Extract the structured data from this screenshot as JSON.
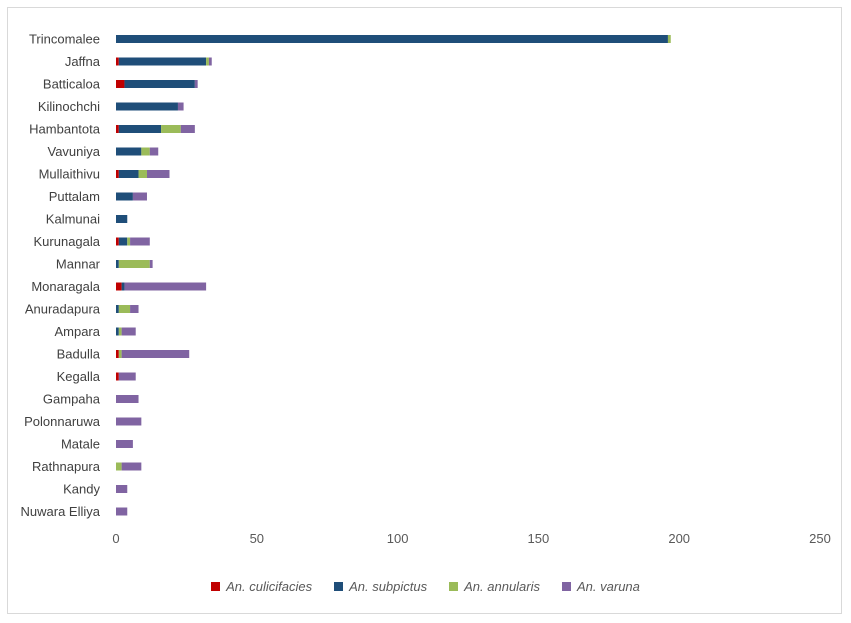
{
  "chart_data": {
    "type": "bar",
    "orientation": "horizontal",
    "stacked": true,
    "categories": [
      "Trincomalee",
      "Jaffna",
      "Batticaloa",
      "Kilinochchi",
      "Hambantota",
      "Vavuniya",
      "Mullaithivu",
      "Puttalam",
      "Kalmunai",
      "Kurunagala",
      "Mannar",
      "Monaragala",
      "Anuradapura",
      "Ampara",
      "Badulla",
      "Kegalla",
      "Gampaha",
      "Polonnaruwa",
      "Matale",
      "Rathnapura",
      "Kandy",
      "Nuwara Elliya"
    ],
    "series": [
      {
        "name": "An. culicifacies",
        "color": "#c00000",
        "values": [
          0,
          1,
          3,
          0,
          1,
          0,
          1,
          0,
          0,
          1,
          0,
          2,
          0,
          0,
          1,
          1,
          0,
          0,
          0,
          0,
          0,
          0
        ]
      },
      {
        "name": "An. subpictus",
        "color": "#1f4e79",
        "values": [
          196,
          31,
          25,
          22,
          15,
          9,
          7,
          6,
          4,
          3,
          1,
          1,
          1,
          1,
          0,
          0,
          0,
          0,
          0,
          0,
          0,
          0
        ]
      },
      {
        "name": "An. annularis",
        "color": "#9bbb59",
        "values": [
          1,
          1,
          0,
          0,
          7,
          3,
          3,
          0,
          0,
          1,
          11,
          0,
          4,
          1,
          1,
          0,
          0,
          0,
          0,
          2,
          0,
          0
        ]
      },
      {
        "name": "An. varuna",
        "color": "#8064a2",
        "values": [
          0,
          1,
          1,
          2,
          5,
          3,
          8,
          5,
          0,
          7,
          1,
          29,
          3,
          5,
          24,
          6,
          8,
          9,
          6,
          7,
          4,
          4
        ]
      }
    ],
    "xlim": [
      0,
      250
    ],
    "xticks": [
      "0",
      "50",
      "100",
      "150",
      "200",
      "250"
    ],
    "grid": false,
    "legend_position": "bottom",
    "title": "",
    "xlabel": "",
    "ylabel": ""
  }
}
